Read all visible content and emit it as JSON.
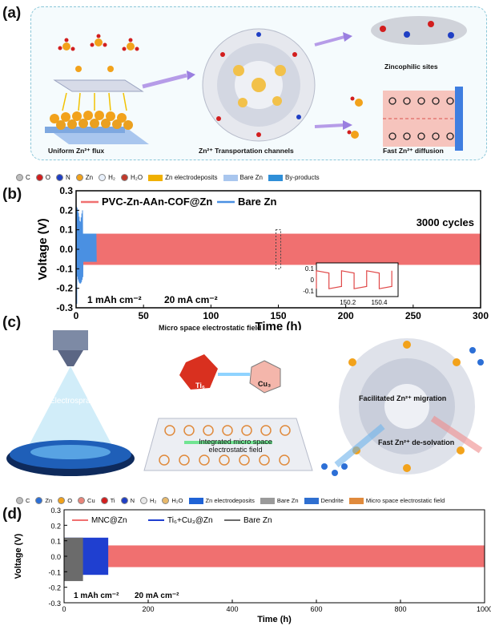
{
  "panel_a": {
    "letter": "(a)",
    "captions": {
      "uniform_flux": "Uniform Zn²⁺ flux",
      "channels": "Zn²⁺ Transportation channels",
      "zincophilic": "Zincophilic sites",
      "fast_diffusion": "Fast Zn²⁺ diffusion"
    }
  },
  "legend_a": {
    "items": [
      {
        "label": "C",
        "color": "#bdbdbd"
      },
      {
        "label": "O",
        "color": "#d21e1e"
      },
      {
        "label": "N",
        "color": "#1f3fc4"
      },
      {
        "label": "Zn",
        "color": "#f2a21b"
      },
      {
        "label": "H₂",
        "color": "#e8f0fb"
      },
      {
        "label": "H₂O",
        "color": "#c0392b"
      },
      {
        "label": "Zn electrodeposits",
        "color": "#f0b000"
      },
      {
        "label": "Bare Zn",
        "color": "#a9c6ee"
      },
      {
        "label": "By-products",
        "color": "#2f8fd8"
      }
    ]
  },
  "panel_b": {
    "letter": "(b)"
  },
  "panel_c": {
    "letter": "(c)",
    "texts": {
      "electrospray": "Electrospray",
      "field_title": "Micro space electrostatic field",
      "ti": "Ti₆",
      "cu": "Cu₃",
      "integrated": "Integrated micro space electrostatic field",
      "migration": "Facilitated Zn²⁺ migration",
      "desolvation": "Fast Zn²⁺ de-solvation"
    }
  },
  "legend_c": {
    "items": [
      {
        "label": "C",
        "color": "#bdbdbd"
      },
      {
        "label": "Zn",
        "color": "#2c6fd6"
      },
      {
        "label": "O",
        "color": "#f2a21b"
      },
      {
        "label": "Cu",
        "color": "#e9857a"
      },
      {
        "label": "Ti",
        "color": "#d21e1e"
      },
      {
        "label": "N",
        "color": "#1f3fc4"
      },
      {
        "label": "H₂",
        "color": "#e8e8e8"
      },
      {
        "label": "H₂O",
        "color": "#e8b96b"
      },
      {
        "label": "Zn electrodeposits",
        "color": "#1f63d6"
      },
      {
        "label": "Bare Zn",
        "color": "#9a9a9a"
      },
      {
        "label": "Dendrite",
        "color": "#2f6fd0"
      },
      {
        "label": "Micro space electrostatic field",
        "color": "#e08a3c"
      }
    ]
  },
  "panel_d": {
    "letter": "(d)"
  },
  "chart_data": [
    {
      "type": "line",
      "xlabel": "Time (h)",
      "ylabel": "Voltage (V)",
      "xlim": [
        0,
        300
      ],
      "ylim": [
        -0.3,
        0.3
      ],
      "xticks": [
        0,
        50,
        100,
        150,
        200,
        250,
        300
      ],
      "yticks": [
        -0.3,
        -0.2,
        -0.1,
        0.0,
        0.1,
        0.2,
        0.3
      ],
      "legend_position": "top-left",
      "annotations": {
        "cycles": "3000 cycles",
        "capacity": "1 mAh cm⁻²",
        "current": "20 mA cm⁻²"
      },
      "series": [
        {
          "name": "PVC-Zn-AAn-COF@Zn",
          "color": "#f07070",
          "x_range": [
            0,
            300
          ],
          "voltage_band": [
            -0.08,
            0.08
          ]
        },
        {
          "name": "Bare Zn",
          "color": "#4a90e2",
          "x_range": [
            0,
            15
          ],
          "voltage_max": 0.22,
          "voltage_min": -0.28
        }
      ],
      "inset": {
        "xticks": [
          150.2,
          150.4
        ],
        "yticks": [
          0.1,
          0.0,
          -0.1
        ],
        "x": [
          150.0,
          150.0,
          150.08,
          150.08,
          150.16,
          150.16,
          150.24,
          150.24,
          150.32,
          150.32,
          150.4,
          150.4,
          150.48,
          150.48
        ],
        "y": [
          -0.08,
          0.08,
          0.06,
          -0.08,
          -0.06,
          0.08,
          0.06,
          -0.08,
          -0.06,
          0.08,
          0.06,
          -0.08,
          -0.06,
          0.08
        ]
      }
    },
    {
      "type": "line",
      "xlabel": "Time (h)",
      "ylabel": "Voltage (V)",
      "xlim": [
        0,
        1000
      ],
      "ylim": [
        -0.3,
        0.3
      ],
      "xticks": [
        0,
        200,
        400,
        600,
        800,
        1000
      ],
      "yticks": [
        -0.3,
        -0.2,
        -0.1,
        0.0,
        0.1,
        0.2,
        0.3
      ],
      "legend_position": "top",
      "annotations": {
        "capacity": "1 mAh cm⁻²",
        "current": "20 mA cm⁻²"
      },
      "series": [
        {
          "name": "MNC@Zn",
          "color": "#f07070",
          "x_range": [
            0,
            1000
          ],
          "voltage_band": [
            -0.07,
            0.07
          ]
        },
        {
          "name": "Ti₆+Cu₃@Zn",
          "color": "#1f3fd0",
          "x_range": [
            0,
            105
          ],
          "voltage_band": [
            -0.12,
            0.12
          ]
        },
        {
          "name": "Bare Zn",
          "color": "#6b6b6b",
          "x_range": [
            0,
            45
          ],
          "voltage_band": [
            -0.16,
            0.12
          ]
        }
      ]
    }
  ]
}
